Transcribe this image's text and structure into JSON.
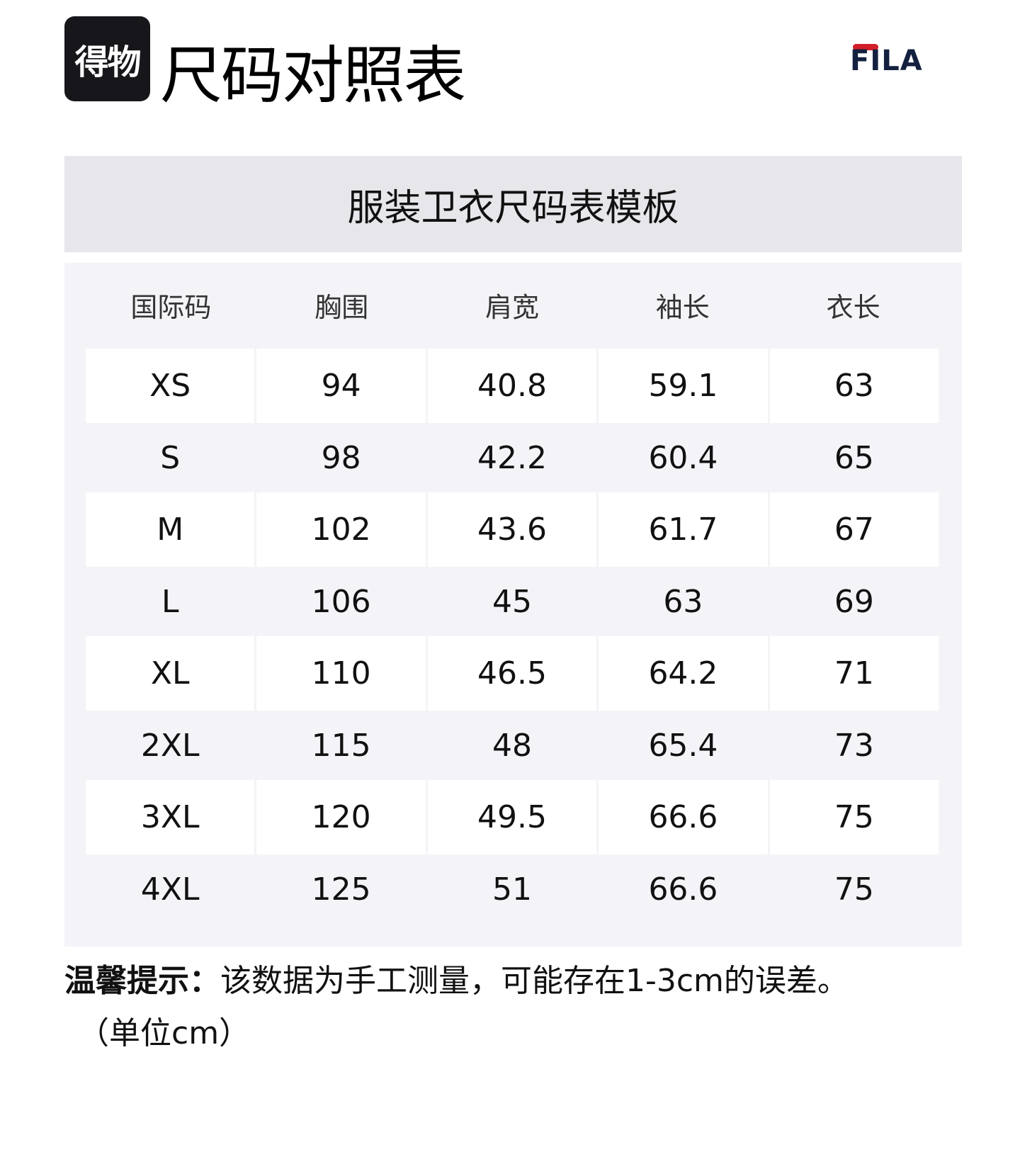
{
  "brand_badge": "得物",
  "title": "尺码对照表",
  "brand_logo": "FILA",
  "colors": {
    "fila_red": "#d21f2b",
    "fila_navy": "#14203f",
    "header_bg": "#e6e6eb",
    "panel_bg": "#f4f4f8"
  },
  "subtitle": "服装卫衣尺码表模板",
  "table": {
    "headers": [
      "国际码",
      "胸围",
      "肩宽",
      "袖长",
      "衣长"
    ],
    "rows": [
      [
        "XS",
        "94",
        "40.8",
        "59.1",
        "63"
      ],
      [
        "S",
        "98",
        "42.2",
        "60.4",
        "65"
      ],
      [
        "M",
        "102",
        "43.6",
        "61.7",
        "67"
      ],
      [
        "L",
        "106",
        "45",
        "63",
        "69"
      ],
      [
        "XL",
        "110",
        "46.5",
        "64.2",
        "71"
      ],
      [
        "2XL",
        "115",
        "48",
        "65.4",
        "73"
      ],
      [
        "3XL",
        "120",
        "49.5",
        "66.6",
        "75"
      ],
      [
        "4XL",
        "125",
        "51",
        "66.6",
        "75"
      ]
    ]
  },
  "note": {
    "label": "温馨提示：",
    "text": "该数据为手工测量，可能存在1-3cm的误差。",
    "unit": "（单位cm）"
  }
}
